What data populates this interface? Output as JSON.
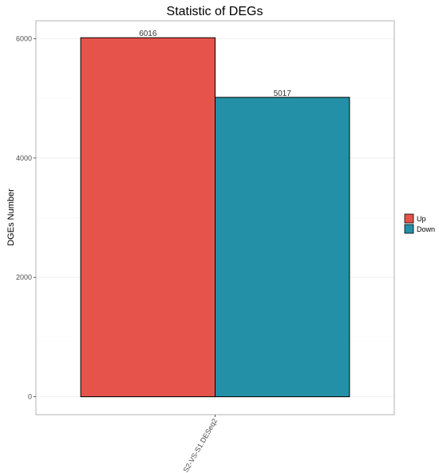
{
  "chart_data": {
    "type": "bar",
    "title": "Statistic of DEGs",
    "xlabel": "",
    "ylabel": "DGEs Number",
    "categories": [
      "S2-VS-S1.DESeq2"
    ],
    "series": [
      {
        "name": "Up",
        "values": [
          6016
        ],
        "color": "#E5534B"
      },
      {
        "name": "Down",
        "values": [
          5017
        ],
        "color": "#2490A7"
      }
    ],
    "y_ticks": [
      0,
      2000,
      4000,
      6000
    ],
    "ylim": [
      -300,
      6300
    ],
    "grid": true,
    "legend_position": "right",
    "bar_outline_color": "#000000",
    "panel_border_color": "#b3b3b3"
  }
}
